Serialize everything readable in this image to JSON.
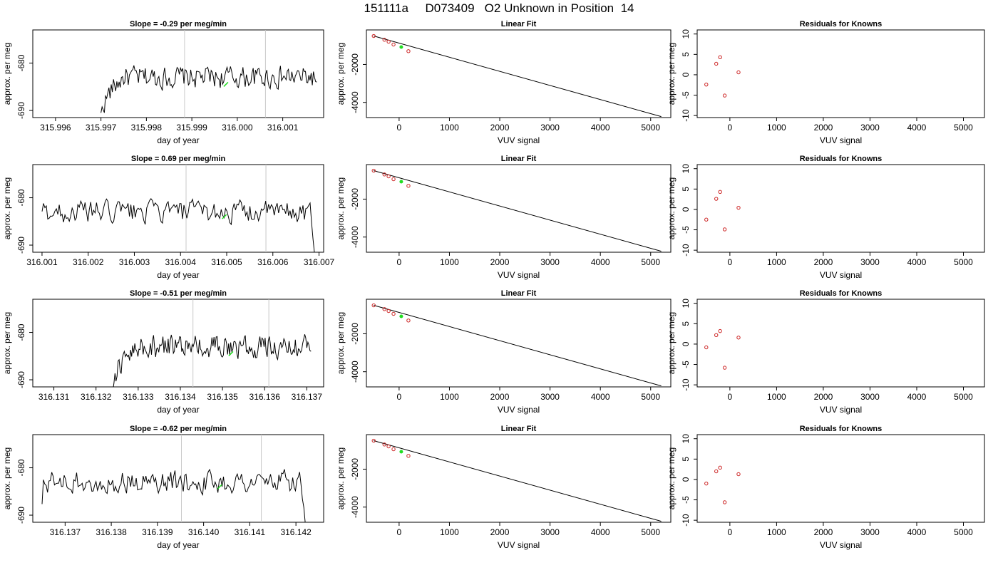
{
  "title": "151111a     D073409   O2 Unknown in Position  14",
  "chart_data": [
    {
      "type": "line",
      "row": 0,
      "title": "Slope =  -0.29  per meg/min",
      "xlabel": "day of year",
      "ylabel": "approx. per meg",
      "xlim": [
        315.9955,
        316.0019
      ],
      "ylim": [
        -691.5,
        -673
      ],
      "xticks": [
        315.996,
        315.997,
        315.998,
        315.999,
        316.0,
        316.001
      ],
      "xtick_labels": [
        "315.996",
        "315.997",
        "315.998",
        "315.999",
        "316.000",
        "316.001"
      ],
      "yticks": [
        -680,
        -690
      ],
      "ytick_labels": [
        "-680",
        "-690"
      ],
      "vlines": [
        315.99884,
        316.00062
      ],
      "trace_start": 315.997,
      "trace_end": 316.00175,
      "trace_rise_end": 315.9975,
      "trace_level": -683,
      "trace_start_value": -691.5,
      "trace_end_value": -684,
      "unknown_point": {
        "x": 315.99975,
        "y": -684.5
      }
    },
    {
      "type": "scatter",
      "row": 0,
      "title": "Linear Fit",
      "xlabel": "VUV signal",
      "ylabel": "approx. per meg",
      "xlim": [
        -650,
        5400
      ],
      "ylim": [
        -4800,
        -180
      ],
      "xticks": [
        0,
        1000,
        2000,
        3000,
        4000,
        5000
      ],
      "xtick_labels": [
        "0",
        "1000",
        "2000",
        "3000",
        "4000",
        "5000"
      ],
      "yticks": [
        -2000,
        -4000
      ],
      "ytick_labels": [
        "-2000",
        "-4000"
      ],
      "knowns": {
        "x": [
          -505,
          -292,
          -209,
          -111,
          185
        ],
        "y": [
          -500,
          -700,
          -800,
          -950,
          -1300
        ]
      },
      "unknown": {
        "x": 43,
        "y": -1080
      },
      "fit_line": {
        "x": [
          -505,
          5210
        ],
        "y": [
          -500,
          -4750
        ]
      }
    },
    {
      "type": "scatter",
      "row": 0,
      "title": "Residuals for Knowns",
      "xlabel": "VUV signal",
      "ylabel": "approx. per meg",
      "xlim": [
        -700,
        5450
      ],
      "ylim": [
        -10.5,
        11
      ],
      "xticks": [
        0,
        1000,
        2000,
        3000,
        4000,
        5000
      ],
      "xtick_labels": [
        "0",
        "1000",
        "2000",
        "3000",
        "4000",
        "5000"
      ],
      "yticks": [
        -10,
        -5,
        0,
        5,
        10
      ],
      "ytick_labels": [
        "-10",
        "-5",
        "0",
        "5",
        "10"
      ],
      "points": {
        "x": [
          -505,
          -292,
          -209,
          -111,
          185
        ],
        "y": [
          -2.4,
          2.7,
          4.3,
          -5.1,
          0.6
        ]
      }
    },
    {
      "type": "line",
      "row": 1,
      "title": "Slope =  0.69  per meg/min",
      "xlabel": "day of year",
      "ylabel": "approx. per meg",
      "xlim": [
        316.0008,
        316.0071
      ],
      "ylim": [
        -691.5,
        -673
      ],
      "xticks": [
        316.001,
        316.002,
        316.003,
        316.004,
        316.005,
        316.006,
        316.007
      ],
      "xtick_labels": [
        "316.001",
        "316.002",
        "316.003",
        "316.004",
        "316.005",
        "316.006",
        "316.007"
      ],
      "yticks": [
        -680,
        -690
      ],
      "ytick_labels": [
        "-680",
        "-690"
      ],
      "vlines": [
        316.00412,
        316.00585
      ],
      "trace_start": 316.001,
      "trace_end": 316.0069,
      "trace_level": -683,
      "trace_start_value": -683,
      "trace_end_value": -691.5,
      "unknown_point": {
        "x": 316.00495,
        "y": -684
      }
    },
    {
      "type": "scatter",
      "row": 1,
      "title": "Linear Fit",
      "xlabel": "VUV signal",
      "ylabel": "approx. per meg",
      "xlim": [
        -650,
        5400
      ],
      "ylim": [
        -4800,
        -180
      ],
      "xticks": [
        0,
        1000,
        2000,
        3000,
        4000,
        5000
      ],
      "xtick_labels": [
        "0",
        "1000",
        "2000",
        "3000",
        "4000",
        "5000"
      ],
      "yticks": [
        -2000,
        -4000
      ],
      "ytick_labels": [
        "-2000",
        "-4000"
      ],
      "knowns": {
        "x": [
          -505,
          -292,
          -209,
          -111,
          185
        ],
        "y": [
          -500,
          -700,
          -800,
          -950,
          -1300
        ]
      },
      "unknown": {
        "x": 43,
        "y": -1080
      },
      "fit_line": {
        "x": [
          -505,
          5210
        ],
        "y": [
          -500,
          -4750
        ]
      }
    },
    {
      "type": "scatter",
      "row": 1,
      "title": "Residuals for Knowns",
      "xlabel": "VUV signal",
      "ylabel": "approx. per meg",
      "xlim": [
        -700,
        5450
      ],
      "ylim": [
        -10.5,
        11
      ],
      "xticks": [
        0,
        1000,
        2000,
        3000,
        4000,
        5000
      ],
      "xtick_labels": [
        "0",
        "1000",
        "2000",
        "3000",
        "4000",
        "5000"
      ],
      "yticks": [
        -10,
        -5,
        0,
        5,
        10
      ],
      "ytick_labels": [
        "-10",
        "-5",
        "0",
        "5",
        "10"
      ],
      "points": {
        "x": [
          -505,
          -292,
          -209,
          -111,
          185
        ],
        "y": [
          -2.5,
          2.6,
          4.3,
          -4.9,
          0.4
        ]
      }
    },
    {
      "type": "line",
      "row": 2,
      "title": "Slope =  -0.51  per meg/min",
      "xlabel": "day of year",
      "ylabel": "approx. per meg",
      "xlim": [
        316.1305,
        316.1374
      ],
      "ylim": [
        -691.5,
        -673
      ],
      "xticks": [
        316.131,
        316.132,
        316.133,
        316.134,
        316.135,
        316.136,
        316.137
      ],
      "xtick_labels": [
        "316.131",
        "316.132",
        "316.133",
        "316.134",
        "316.135",
        "316.136",
        "316.137"
      ],
      "yticks": [
        -680,
        -690
      ],
      "ytick_labels": [
        "-680",
        "-690"
      ],
      "vlines": [
        316.1343,
        316.1361
      ],
      "trace_start": 316.1324,
      "trace_end": 316.1371,
      "trace_rise_end": 316.133,
      "trace_level": -683,
      "trace_start_value": -691.5,
      "trace_end_value": -684,
      "unknown_point": {
        "x": 316.1352,
        "y": -684.5
      }
    },
    {
      "type": "scatter",
      "row": 2,
      "title": "Linear Fit",
      "xlabel": "VUV signal",
      "ylabel": "approx. per meg",
      "xlim": [
        -650,
        5400
      ],
      "ylim": [
        -4800,
        -180
      ],
      "xticks": [
        0,
        1000,
        2000,
        3000,
        4000,
        5000
      ],
      "xtick_labels": [
        "0",
        "1000",
        "2000",
        "3000",
        "4000",
        "5000"
      ],
      "yticks": [
        -2000,
        -4000
      ],
      "ytick_labels": [
        "-2000",
        "-4000"
      ],
      "knowns": {
        "x": [
          -505,
          -292,
          -209,
          -111,
          185
        ],
        "y": [
          -500,
          -700,
          -800,
          -950,
          -1300
        ]
      },
      "unknown": {
        "x": 43,
        "y": -1080
      },
      "fit_line": {
        "x": [
          -505,
          5210
        ],
        "y": [
          -500,
          -4750
        ]
      }
    },
    {
      "type": "scatter",
      "row": 2,
      "title": "Residuals for Knowns",
      "xlabel": "VUV signal",
      "ylabel": "approx. per meg",
      "xlim": [
        -700,
        5450
      ],
      "ylim": [
        -10.5,
        11
      ],
      "xticks": [
        0,
        1000,
        2000,
        3000,
        4000,
        5000
      ],
      "xtick_labels": [
        "0",
        "1000",
        "2000",
        "3000",
        "4000",
        "5000"
      ],
      "yticks": [
        -10,
        -5,
        0,
        5,
        10
      ],
      "ytick_labels": [
        "-10",
        "-5",
        "0",
        "5",
        "10"
      ],
      "points": {
        "x": [
          -505,
          -292,
          -209,
          -111,
          185
        ],
        "y": [
          -0.8,
          2.2,
          3.2,
          -5.8,
          1.6
        ]
      }
    },
    {
      "type": "line",
      "row": 3,
      "title": "Slope =  -0.62  per meg/min",
      "xlabel": "day of year",
      "ylabel": "approx. per meg",
      "xlim": [
        316.1363,
        316.1426
      ],
      "ylim": [
        -691.5,
        -673
      ],
      "xticks": [
        316.137,
        316.138,
        316.139,
        316.14,
        316.141,
        316.142
      ],
      "xtick_labels": [
        "316.137",
        "316.138",
        "316.139",
        "316.140",
        "316.141",
        "316.142"
      ],
      "yticks": [
        -680,
        -690
      ],
      "ytick_labels": [
        "-680",
        "-690"
      ],
      "vlines": [
        316.13952,
        316.14125
      ],
      "trace_start": 316.1365,
      "trace_end": 316.1422,
      "trace_level": -683,
      "trace_start_value": -686,
      "trace_end_value": -691.5,
      "unknown_point": {
        "x": 316.14035,
        "y": -684
      }
    },
    {
      "type": "scatter",
      "row": 3,
      "title": "Linear Fit",
      "xlabel": "VUV signal",
      "ylabel": "approx. per meg",
      "xlim": [
        -650,
        5400
      ],
      "ylim": [
        -4800,
        -180
      ],
      "xticks": [
        0,
        1000,
        2000,
        3000,
        4000,
        5000
      ],
      "xtick_labels": [
        "0",
        "1000",
        "2000",
        "3000",
        "4000",
        "5000"
      ],
      "yticks": [
        -2000,
        -4000
      ],
      "ytick_labels": [
        "-2000",
        "-4000"
      ],
      "knowns": {
        "x": [
          -505,
          -292,
          -209,
          -111,
          185
        ],
        "y": [
          -500,
          -700,
          -800,
          -950,
          -1300
        ]
      },
      "unknown": {
        "x": 43,
        "y": -1080
      },
      "fit_line": {
        "x": [
          -505,
          5210
        ],
        "y": [
          -500,
          -4750
        ]
      }
    },
    {
      "type": "scatter",
      "row": 3,
      "title": "Residuals for Knowns",
      "xlabel": "VUV signal",
      "ylabel": "approx. per meg",
      "xlim": [
        -700,
        5450
      ],
      "ylim": [
        -10.5,
        11
      ],
      "xticks": [
        0,
        1000,
        2000,
        3000,
        4000,
        5000
      ],
      "xtick_labels": [
        "0",
        "1000",
        "2000",
        "3000",
        "4000",
        "5000"
      ],
      "yticks": [
        -10,
        -5,
        0,
        5,
        10
      ],
      "ytick_labels": [
        "-10",
        "-5",
        "0",
        "5",
        "10"
      ],
      "points": {
        "x": [
          -505,
          -292,
          -209,
          -111,
          185
        ],
        "y": [
          -1.0,
          2.0,
          2.9,
          -5.6,
          1.3
        ]
      }
    }
  ]
}
